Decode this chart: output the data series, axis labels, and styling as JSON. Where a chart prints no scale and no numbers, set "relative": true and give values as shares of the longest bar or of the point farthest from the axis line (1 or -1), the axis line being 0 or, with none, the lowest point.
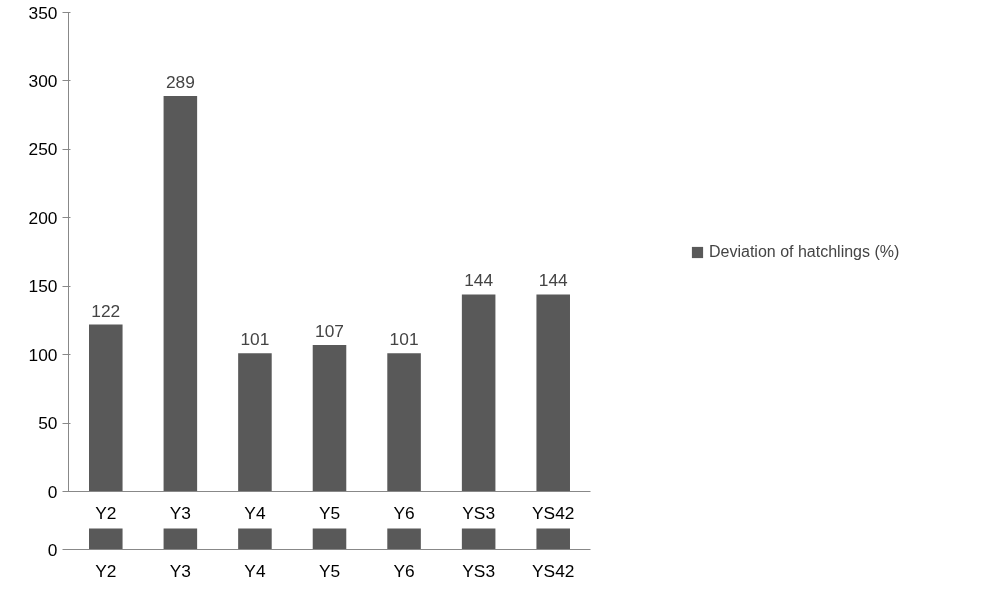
{
  "chart_data": [
    {
      "type": "bar",
      "categories": [
        "Y2",
        "Y3",
        "Y4",
        "Y5",
        "Y6",
        "YS3",
        "YS42"
      ],
      "series": [
        {
          "name": "Deviation of hatchlings (%)",
          "color": "#595959",
          "values": [
            122,
            289,
            101,
            107,
            101,
            144,
            144
          ]
        }
      ],
      "ylim": [
        0,
        350
      ],
      "yticks": [
        0,
        50,
        100,
        150,
        200,
        250,
        300,
        350
      ],
      "grid": false,
      "legend": "right",
      "data_labels": true
    },
    {
      "type": "bar",
      "categories": [
        "Y2",
        "Y3",
        "Y4",
        "Y5",
        "Y6",
        "YS3",
        "YS42"
      ],
      "series": [
        {
          "color": "#595959",
          "values": [
            1,
            1,
            1,
            1,
            1,
            1,
            1
          ]
        }
      ],
      "relative": true,
      "annotations": [
        "0"
      ],
      "grid": false
    }
  ]
}
